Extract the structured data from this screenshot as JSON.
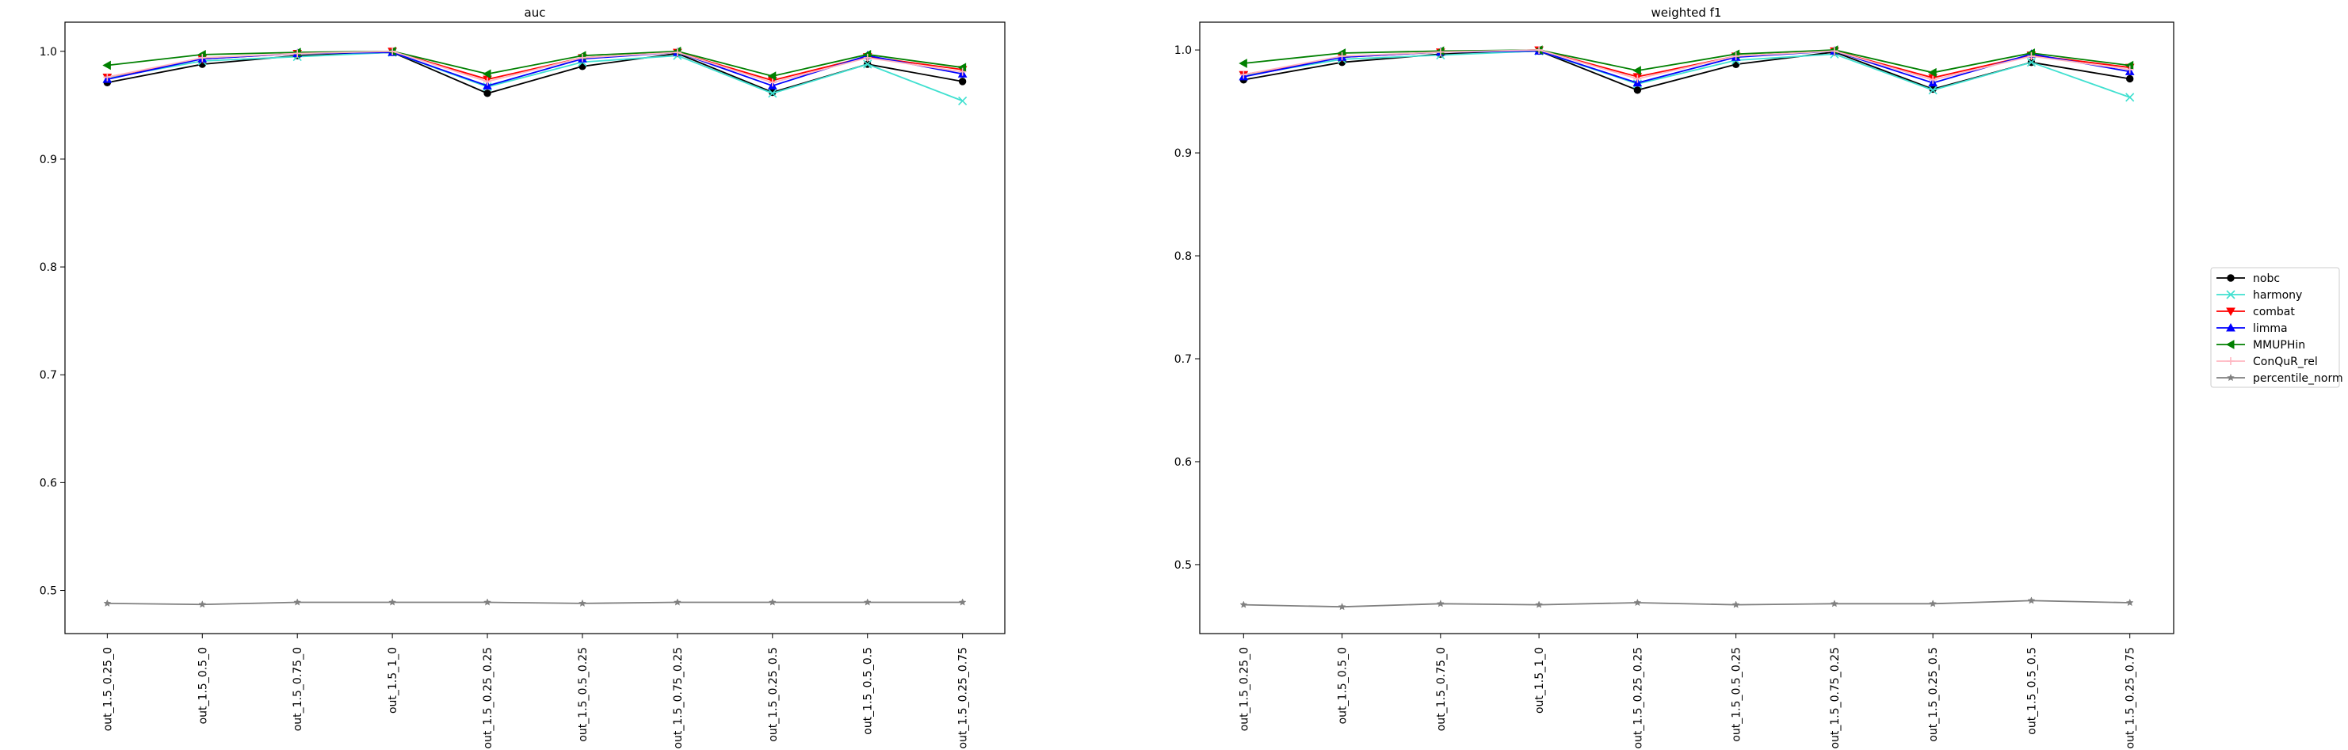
{
  "chart_data": [
    {
      "type": "line",
      "title": "auc",
      "xlabel": "",
      "ylabel": "",
      "ylim": [
        0.46,
        1.027
      ],
      "yticks": [
        0.5,
        0.6,
        0.7,
        0.8,
        0.9,
        1.0
      ],
      "ytick_labels": [
        "0.5",
        "0.6",
        "0.7",
        "0.8",
        "0.9",
        "1.0"
      ],
      "grid": false,
      "categories": [
        "out_1.5_0.25_0",
        "out_1.5_0.5_0",
        "out_1.5_0.75_0",
        "out_1.5_1_0",
        "out_1.5_0.25_0.25",
        "out_1.5_0.5_0.25",
        "out_1.5_0.75_0.25",
        "out_1.5_0.25_0.5",
        "out_1.5_0.5_0.5",
        "out_1.5_0.25_0.75"
      ],
      "series": [
        {
          "name": "nobc",
          "values": [
            0.971,
            0.988,
            0.996,
            0.999,
            0.961,
            0.986,
            0.998,
            0.962,
            0.988,
            0.972
          ]
        },
        {
          "name": "harmony",
          "values": [
            0.975,
            0.991,
            0.995,
            0.999,
            0.967,
            0.99,
            0.996,
            0.961,
            0.988,
            0.954
          ]
        },
        {
          "name": "combat",
          "values": [
            0.976,
            0.993,
            0.998,
            1.0,
            0.974,
            0.994,
            0.999,
            0.973,
            0.995,
            0.983
          ]
        },
        {
          "name": "limma",
          "values": [
            0.974,
            0.993,
            0.998,
            0.999,
            0.968,
            0.993,
            0.999,
            0.968,
            0.996,
            0.979
          ]
        },
        {
          "name": "MMUPHin",
          "values": [
            0.987,
            0.997,
            0.999,
            1.0,
            0.979,
            0.996,
            1.0,
            0.977,
            0.997,
            0.985
          ]
        },
        {
          "name": "ConQuR_rel",
          "values": [
            0.976,
            0.994,
            0.998,
            1.0,
            0.972,
            0.994,
            0.999,
            0.971,
            0.994,
            0.981
          ]
        },
        {
          "name": "percentile_norm",
          "values": [
            0.488,
            0.487,
            0.489,
            0.489,
            0.489,
            0.488,
            0.489,
            0.489,
            0.489,
            0.489
          ]
        }
      ]
    },
    {
      "type": "line",
      "title": "weighted f1",
      "xlabel": "",
      "ylabel": "",
      "ylim": [
        0.433,
        1.027
      ],
      "yticks": [
        0.5,
        0.6,
        0.7,
        0.8,
        0.9,
        1.0
      ],
      "ytick_labels": [
        "0.5",
        "0.6",
        "0.7",
        "0.8",
        "0.9",
        "1.0"
      ],
      "grid": false,
      "categories": [
        "out_1.5_0.25_0",
        "out_1.5_0.5_0",
        "out_1.5_0.75_0",
        "out_1.5_1_0",
        "out_1.5_0.25_0.25",
        "out_1.5_0.5_0.25",
        "out_1.5_0.75_0.25",
        "out_1.5_0.25_0.5",
        "out_1.5_0.5_0.5",
        "out_1.5_0.25_0.75"
      ],
      "series": [
        {
          "name": "nobc",
          "values": [
            0.971,
            0.988,
            0.996,
            0.999,
            0.961,
            0.986,
            0.998,
            0.962,
            0.988,
            0.972
          ]
        },
        {
          "name": "harmony",
          "values": [
            0.975,
            0.991,
            0.995,
            0.999,
            0.967,
            0.99,
            0.996,
            0.961,
            0.988,
            0.954
          ]
        },
        {
          "name": "combat",
          "values": [
            0.976,
            0.993,
            0.998,
            1.0,
            0.974,
            0.994,
            0.999,
            0.973,
            0.995,
            0.983
          ]
        },
        {
          "name": "limma",
          "values": [
            0.974,
            0.993,
            0.998,
            0.999,
            0.968,
            0.993,
            0.999,
            0.968,
            0.996,
            0.979
          ]
        },
        {
          "name": "MMUPHin",
          "values": [
            0.987,
            0.997,
            0.999,
            1.0,
            0.98,
            0.996,
            1.0,
            0.978,
            0.997,
            0.985
          ]
        },
        {
          "name": "ConQuR_rel",
          "values": [
            0.976,
            0.994,
            0.998,
            1.0,
            0.972,
            0.994,
            0.999,
            0.971,
            0.994,
            0.981
          ]
        },
        {
          "name": "percentile_norm",
          "values": [
            0.461,
            0.459,
            0.462,
            0.461,
            0.463,
            0.461,
            0.462,
            0.462,
            0.465,
            0.463
          ]
        }
      ]
    }
  ],
  "legend": {
    "placement": "right",
    "entries": [
      {
        "label": "nobc",
        "color": "#000000",
        "marker": "circle"
      },
      {
        "label": "harmony",
        "color": "#40e0d0",
        "marker": "x"
      },
      {
        "label": "combat",
        "color": "#ff0000",
        "marker": "triangle-down"
      },
      {
        "label": "limma",
        "color": "#0000ff",
        "marker": "triangle-up"
      },
      {
        "label": "MMUPHin",
        "color": "#008000",
        "marker": "triangle-left"
      },
      {
        "label": "ConQuR_rel",
        "color": "#ffb6c1",
        "marker": "plus"
      },
      {
        "label": "percentile_norm",
        "color": "#808080",
        "marker": "star"
      }
    ]
  }
}
